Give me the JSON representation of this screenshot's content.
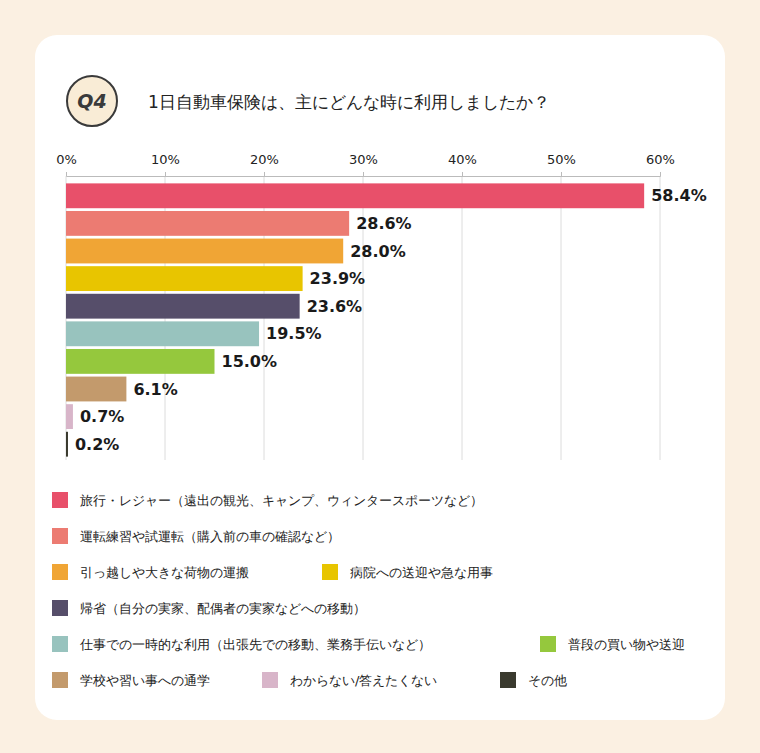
{
  "chart_data": {
    "type": "bar",
    "orientation": "horizontal",
    "title": "1日自動車保険は、主にどんな時に利用しましたか？",
    "annotations": [
      "Q4"
    ],
    "categories": [
      "旅行・レジャー（遠出の観光、キャンプ、ウィンタースポーツなど）",
      "運転練習や試運転（購入前の車の確認など）",
      "引っ越しや大きな荷物の運搬",
      "病院への送迎や急な用事",
      "帰省（自分の実家、配偶者の実家などへの移動）",
      "仕事での一時的な利用（出張先での移動、業務手伝いなど）",
      "普段の買い物や送迎",
      "学校や習い事への通学",
      "わからない/答えたくない",
      "その他"
    ],
    "values": [
      58.4,
      28.6,
      28.0,
      23.9,
      23.6,
      19.5,
      15.0,
      6.1,
      0.7,
      0.2
    ],
    "value_labels": [
      "58.4%",
      "28.6%",
      "28.0%",
      "23.9%",
      "23.6%",
      "19.5%",
      "15.0%",
      "6.1%",
      "0.7%",
      "0.2%"
    ],
    "colors": [
      "#e8506a",
      "#ec7b72",
      "#f0a535",
      "#e8c500",
      "#564e6a",
      "#98c3be",
      "#95c83d",
      "#c39a6c",
      "#d8b5c9",
      "#3a3a2e"
    ],
    "xlim": [
      0,
      60
    ],
    "xticks": [
      {
        "value": 0,
        "label": "0%"
      },
      {
        "value": 10,
        "label": "10%"
      },
      {
        "value": 20,
        "label": "20%"
      },
      {
        "value": 30,
        "label": "30%"
      },
      {
        "value": 40,
        "label": "40%"
      },
      {
        "value": 50,
        "label": "50%"
      },
      {
        "value": 60,
        "label": "60%"
      }
    ],
    "grid": true,
    "data_labels": true,
    "tick_labels": "x",
    "legend": "bottom"
  }
}
